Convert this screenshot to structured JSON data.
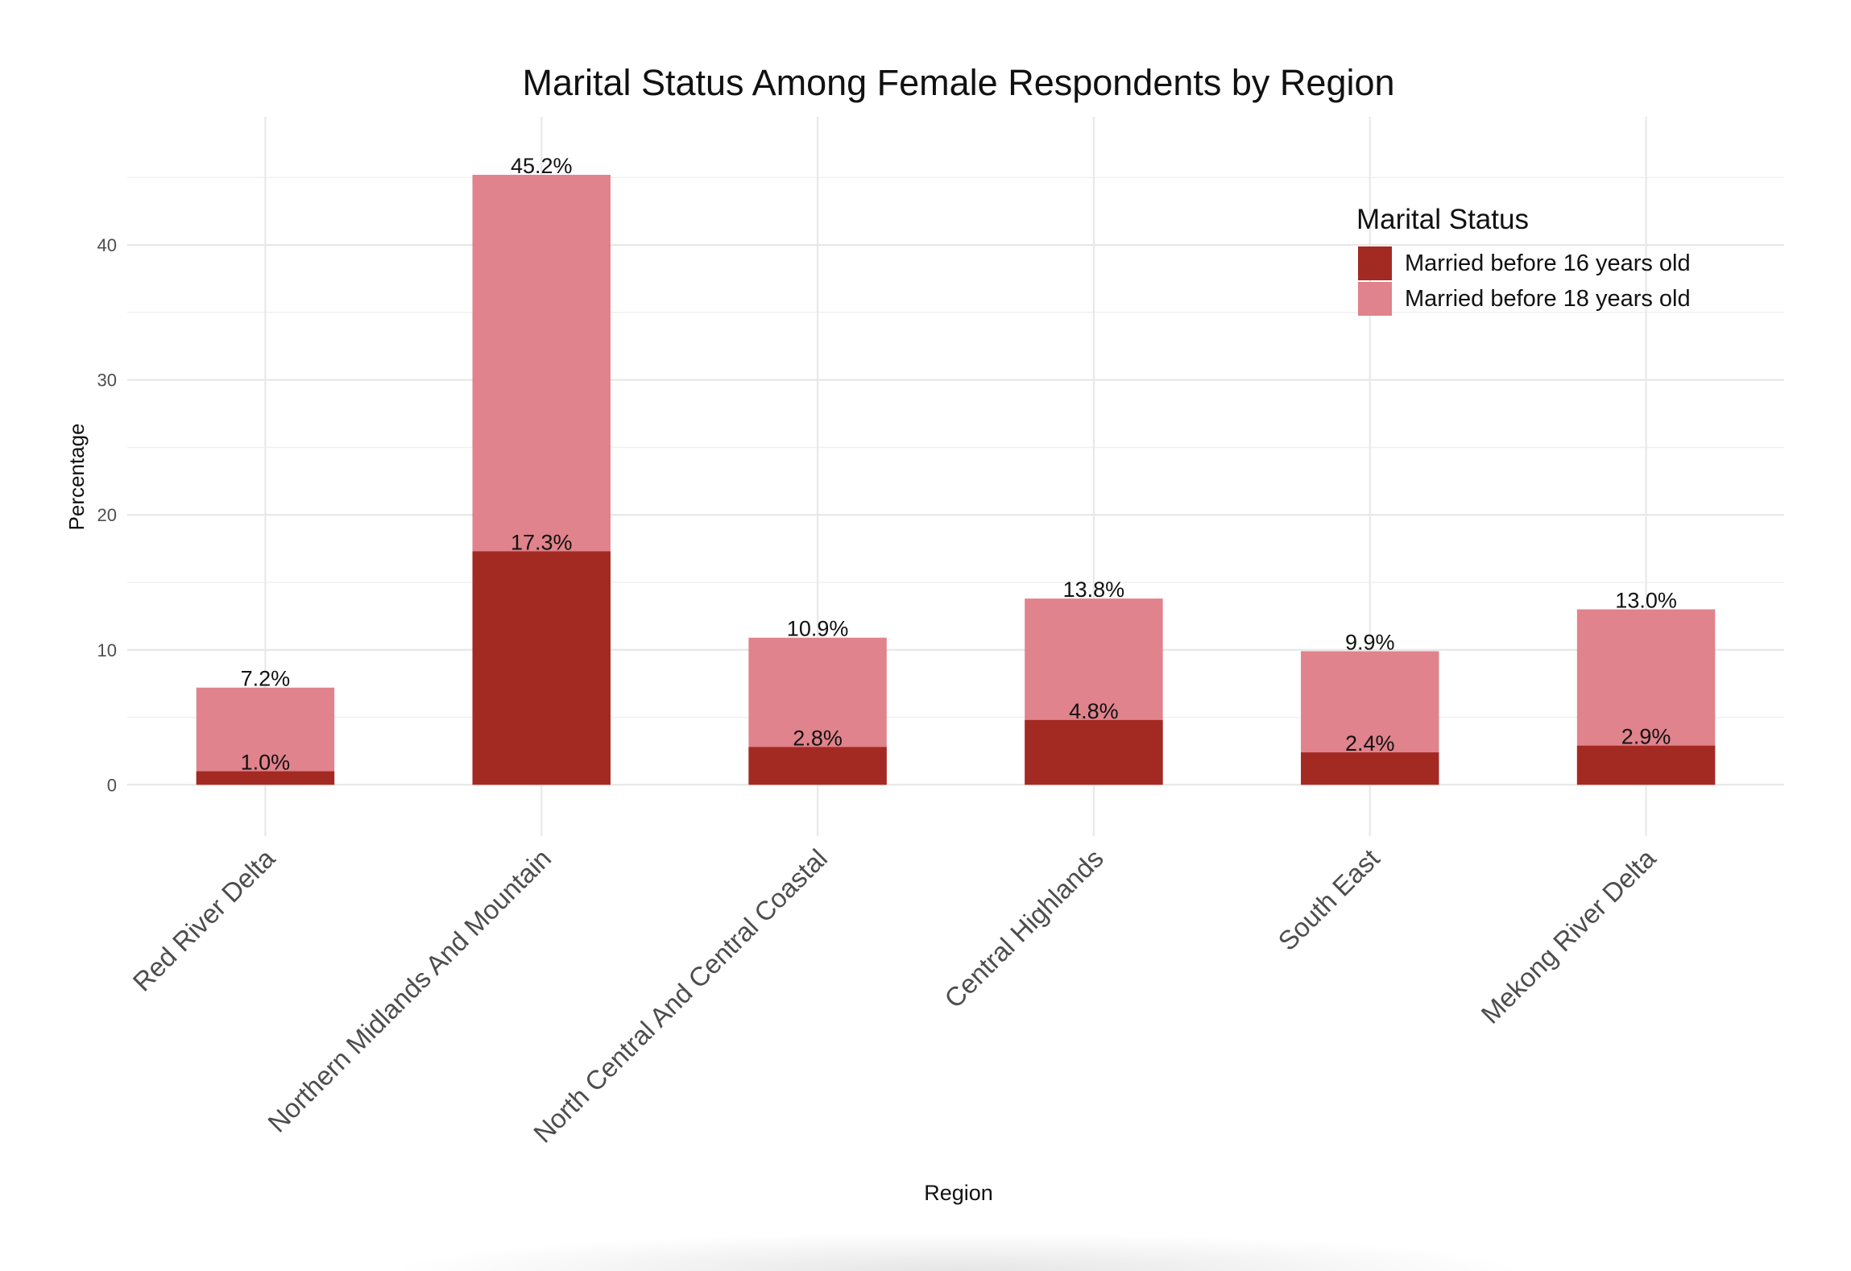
{
  "chart_data": {
    "type": "bar",
    "stacked": false,
    "overlaid": true,
    "title": "Marital Status Among Female Respondents by Region",
    "xlabel": "Region",
    "ylabel": "Percentage",
    "categories": [
      "Red River Delta",
      "Northern Midlands And Mountain",
      "North Central And Central Coastal",
      "Central Highlands",
      "South East",
      "Mekong River Delta"
    ],
    "series": [
      {
        "name": "Married before 18 years old",
        "color": "#E0838C",
        "values": [
          7.2,
          45.2,
          10.9,
          13.8,
          9.9,
          13.0
        ],
        "labels": [
          "7.2%",
          "45.2%",
          "10.9%",
          "13.8%",
          "9.9%",
          "13.0%"
        ]
      },
      {
        "name": "Married before 16 years old",
        "color": "#A32A22",
        "values": [
          1.0,
          17.3,
          2.8,
          4.8,
          2.4,
          2.9
        ],
        "labels": [
          "1.0%",
          "17.3%",
          "2.8%",
          "4.8%",
          "2.4%",
          "2.9%"
        ]
      }
    ],
    "ylim": [
      -3.8,
      49.5
    ],
    "yticks": [
      0,
      10,
      20,
      30,
      40
    ],
    "ytick_labels": [
      "0",
      "10",
      "20",
      "30",
      "40"
    ],
    "grid": true,
    "legend": {
      "title": "Marital Status",
      "position": "top-right",
      "entries": [
        {
          "label": "Married before 16 years old",
          "color": "#A32A22"
        },
        {
          "label": "Married before 18 years old",
          "color": "#E0838C"
        }
      ]
    }
  }
}
